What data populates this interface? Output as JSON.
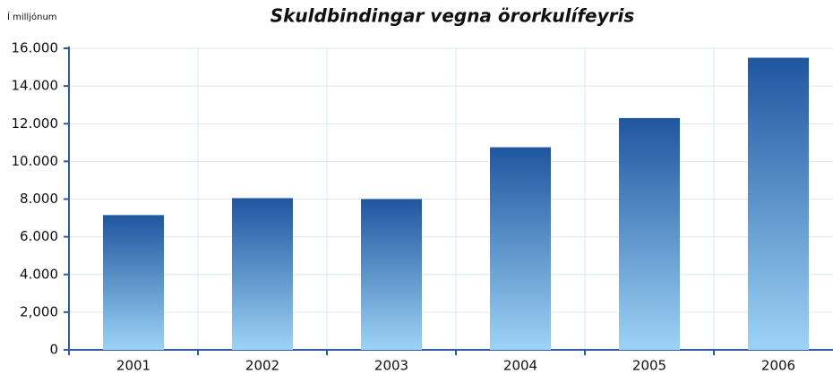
{
  "chart_data": {
    "type": "bar",
    "title": "Skuldbindingar vegna örorkulífeyris",
    "y_label": "Í milljónum",
    "categories": [
      "2001",
      "2002",
      "2003",
      "2004",
      "2005",
      "2006"
    ],
    "values": [
      7150,
      8050,
      8000,
      10750,
      12300,
      15500
    ],
    "color": [
      "#1f56a0",
      "#9dd3f5"
    ],
    "ylim": [
      0,
      16000
    ],
    "yticks": [
      0,
      {
        "value": 2000,
        "label": "2,000"
      },
      {
        "value": 4000,
        "label": "4.000"
      },
      {
        "value": 6000,
        "label": "6.000"
      },
      {
        "value": 8000,
        "label": "8.000"
      },
      {
        "value": 10000,
        "label": "10.000"
      },
      {
        "value": 12000,
        "label": "12.000"
      },
      {
        "value": 14000,
        "label": "14.000"
      },
      {
        "value": 16000,
        "label": "16.000"
      }
    ],
    "grid": true
  }
}
